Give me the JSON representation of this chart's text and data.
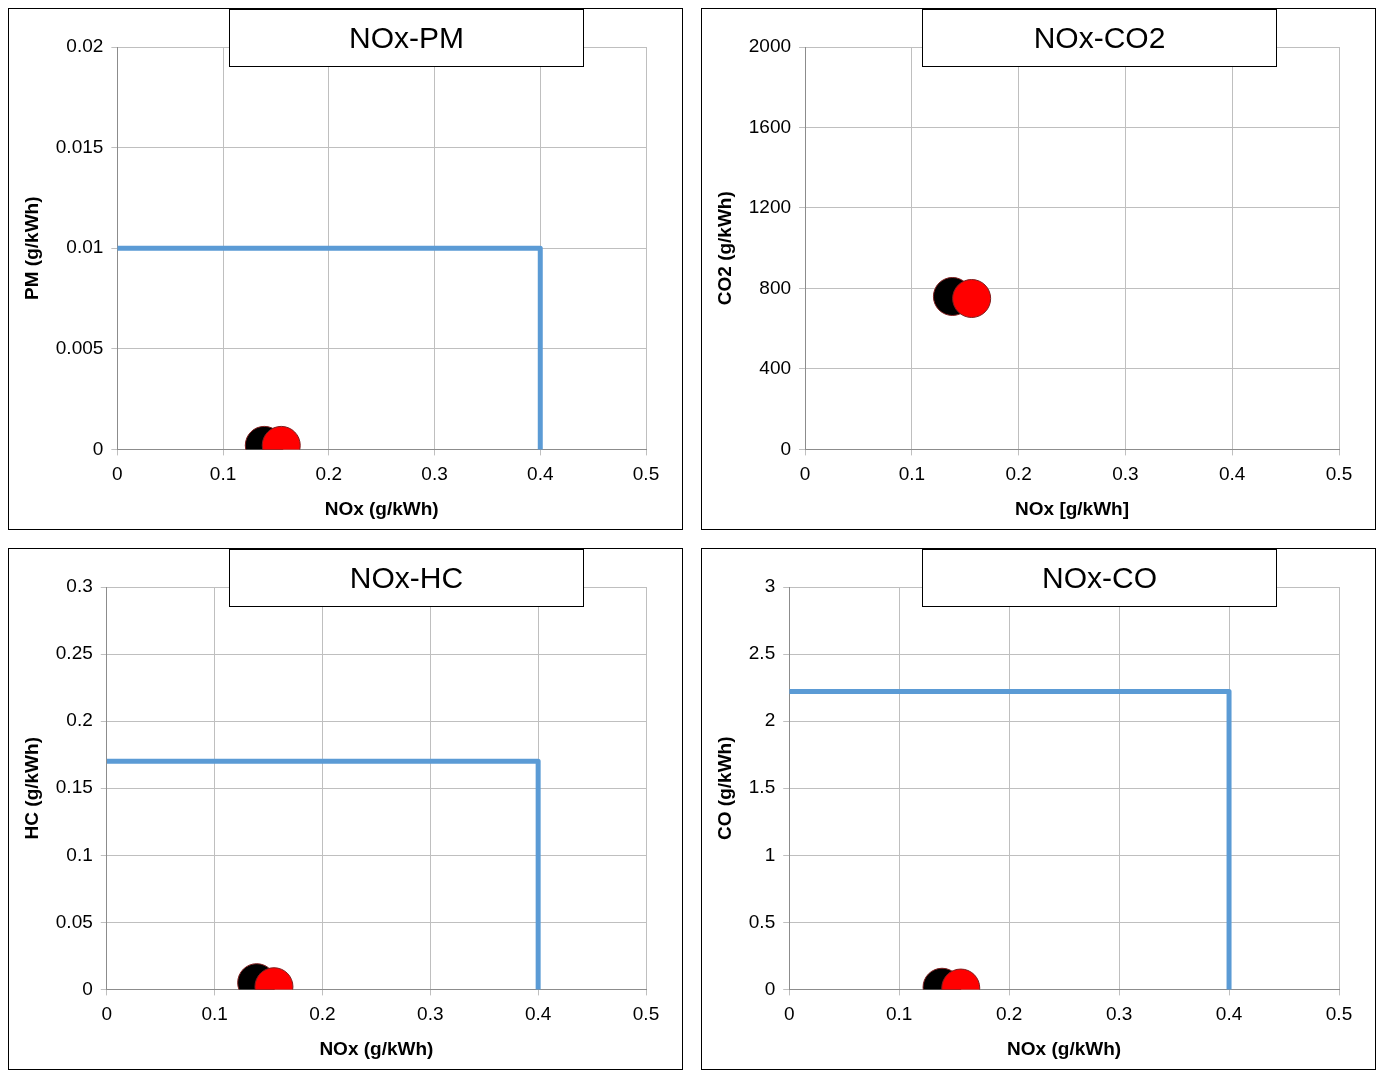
{
  "chart_data": [
    {
      "type": "scatter",
      "title": "NOx-PM",
      "xlabel": "NOx (g/kWh)",
      "ylabel": "PM (g/kWh)",
      "xlim": [
        0,
        0.5
      ],
      "xticks": [
        0,
        0.1,
        0.2,
        0.3,
        0.4,
        0.5
      ],
      "ylim": [
        0,
        0.02
      ],
      "yticks": [
        0,
        0.005,
        0.01,
        0.015,
        0.02
      ],
      "grid": true,
      "marker": "circle",
      "series": [
        {
          "type": "line",
          "x": [
            0,
            0.4,
            0.4
          ],
          "values": [
            0.01,
            0.01,
            0
          ],
          "color": "#5b9bd5",
          "marker": "none"
        },
        {
          "x": [
            0.139
          ],
          "values": [
            0.0002
          ],
          "color": "#000000"
        },
        {
          "x": [
            0.155
          ],
          "values": [
            0.0002
          ],
          "color": "#ff0000"
        }
      ]
    },
    {
      "type": "scatter",
      "title": "NOx-CO2",
      "xlabel": "NOx [g/kWh]",
      "ylabel": "CO2 (g/kWh)",
      "xlim": [
        0,
        0.5
      ],
      "xticks": [
        0,
        0.1,
        0.2,
        0.3,
        0.4,
        0.5
      ],
      "ylim": [
        0,
        2000
      ],
      "yticks": [
        0,
        400,
        800,
        1200,
        1600,
        2000
      ],
      "grid": true,
      "marker": "circle",
      "series": [
        {
          "x": [
            0.138
          ],
          "values": [
            760
          ],
          "color": "#000000"
        },
        {
          "x": [
            0.156
          ],
          "values": [
            750
          ],
          "color": "#ff0000"
        }
      ]
    },
    {
      "type": "scatter",
      "title": "NOx-HC",
      "xlabel": "NOx (g/kWh)",
      "ylabel": "HC (g/kWh)",
      "xlim": [
        0,
        0.5
      ],
      "xticks": [
        0,
        0.1,
        0.2,
        0.3,
        0.4,
        0.5
      ],
      "ylim": [
        0,
        0.3
      ],
      "yticks": [
        0,
        0.05,
        0.1,
        0.15,
        0.2,
        0.25,
        0.3
      ],
      "grid": true,
      "marker": "circle",
      "series": [
        {
          "type": "line",
          "x": [
            0,
            0.4,
            0.4
          ],
          "values": [
            0.17,
            0.17,
            0
          ],
          "color": "#5b9bd5",
          "marker": "none"
        },
        {
          "x": [
            0.139
          ],
          "values": [
            0.005
          ],
          "color": "#000000"
        },
        {
          "x": [
            0.155
          ],
          "values": [
            0.002
          ],
          "color": "#ff0000"
        }
      ]
    },
    {
      "type": "scatter",
      "title": "NOx-CO",
      "xlabel": "NOx (g/kWh)",
      "ylabel": "CO (g/kWh)",
      "xlim": [
        0,
        0.5
      ],
      "xticks": [
        0,
        0.1,
        0.2,
        0.3,
        0.4,
        0.5
      ],
      "ylim": [
        0,
        3
      ],
      "yticks": [
        0,
        0.5,
        1,
        1.5,
        2,
        2.5,
        3
      ],
      "grid": true,
      "marker": "circle",
      "series": [
        {
          "type": "line",
          "x": [
            0,
            0.4,
            0.4
          ],
          "values": [
            2.22,
            2.22,
            0
          ],
          "color": "#5b9bd5",
          "marker": "none"
        },
        {
          "x": [
            0.139
          ],
          "values": [
            0.016
          ],
          "color": "#000000"
        },
        {
          "x": [
            0.156
          ],
          "values": [
            0.01
          ],
          "color": "#ff0000"
        }
      ]
    }
  ]
}
